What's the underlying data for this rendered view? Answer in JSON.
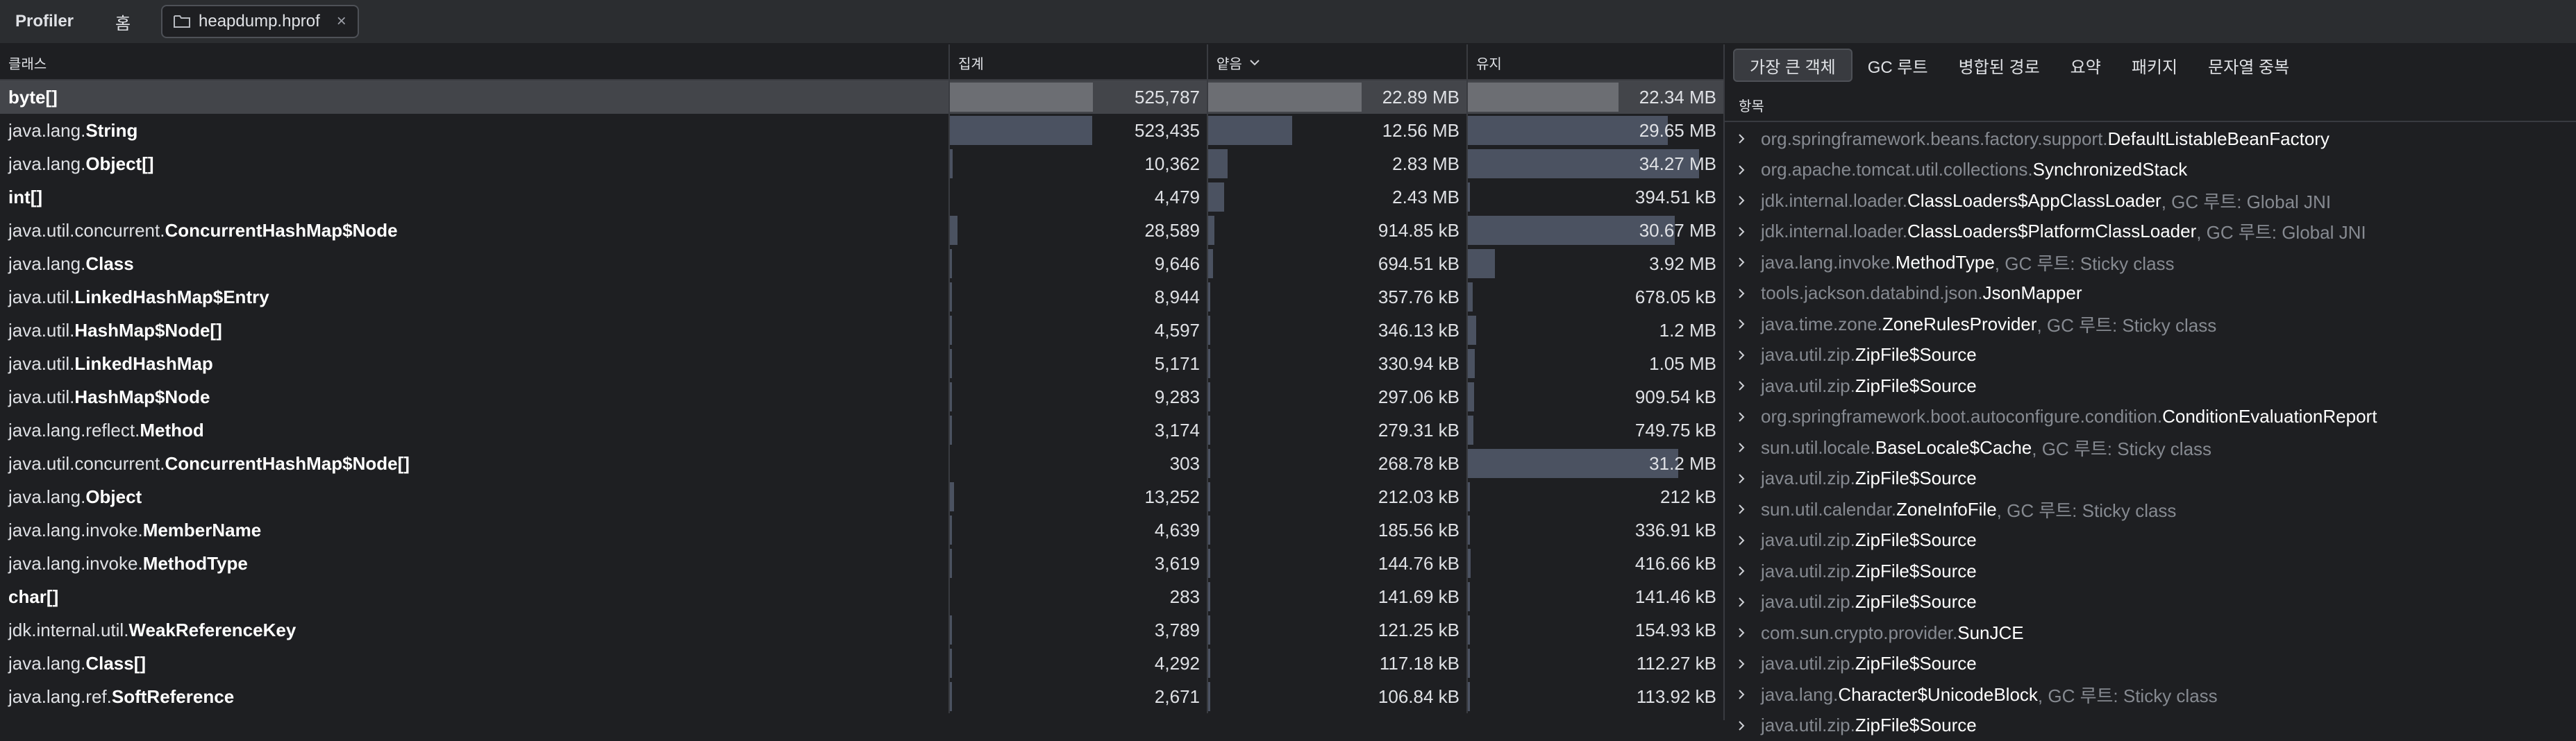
{
  "app": {
    "title": "Profiler",
    "home_tab": "홈",
    "file_tab": "heapdump.hprof",
    "close_glyph": "×"
  },
  "table": {
    "columns": {
      "class": "클래스",
      "count": "집계",
      "shallow": "얕음",
      "retained": "유지"
    },
    "rows": [
      {
        "pkg": "",
        "name": "byte[]",
        "count": "525,787",
        "shallow": "22.89 MB",
        "retained": "22.34 MB",
        "selected": true,
        "count_frac": 0.186,
        "shallow_frac": 0.198,
        "retained_frac": 0.197
      },
      {
        "pkg": "java.lang.",
        "name": "String",
        "count": "523,435",
        "shallow": "12.56 MB",
        "retained": "29.65 MB",
        "count_frac": 0.185,
        "shallow_frac": 0.109,
        "retained_frac": 0.261
      },
      {
        "pkg": "java.lang.",
        "name": "Object[]",
        "count": "10,362",
        "shallow": "2.83 MB",
        "retained": "34.27 MB",
        "count_frac": 0.004,
        "shallow_frac": 0.025,
        "retained_frac": 0.302
      },
      {
        "pkg": "",
        "name": "int[]",
        "count": "4,479",
        "shallow": "2.43 MB",
        "retained": "394.51 kB",
        "count_frac": 0.0,
        "shallow_frac": 0.021,
        "retained_frac": 0.003
      },
      {
        "pkg": "java.util.concurrent.",
        "name": "ConcurrentHashMap$Node",
        "count": "28,589",
        "shallow": "914.85 kB",
        "retained": "30.67 MB",
        "count_frac": 0.01,
        "shallow_frac": 0.008,
        "retained_frac": 0.27
      },
      {
        "pkg": "java.lang.",
        "name": "Class",
        "count": "9,646",
        "shallow": "694.51 kB",
        "retained": "3.92 MB",
        "count_frac": 0.003,
        "shallow_frac": 0.006,
        "retained_frac": 0.035
      },
      {
        "pkg": "java.util.",
        "name": "LinkedHashMap$Entry",
        "count": "8,944",
        "shallow": "357.76 kB",
        "retained": "678.05 kB",
        "count_frac": 0.003,
        "shallow_frac": 0.003,
        "retained_frac": 0.006
      },
      {
        "pkg": "java.util.",
        "name": "HashMap$Node[]",
        "count": "4,597",
        "shallow": "346.13 kB",
        "retained": "1.2 MB",
        "count_frac": 0.002,
        "shallow_frac": 0.003,
        "retained_frac": 0.011
      },
      {
        "pkg": "java.util.",
        "name": "LinkedHashMap",
        "count": "5,171",
        "shallow": "330.94 kB",
        "retained": "1.05 MB",
        "count_frac": 0.002,
        "shallow_frac": 0.003,
        "retained_frac": 0.009
      },
      {
        "pkg": "java.util.",
        "name": "HashMap$Node",
        "count": "9,283",
        "shallow": "297.06 kB",
        "retained": "909.54 kB",
        "count_frac": 0.003,
        "shallow_frac": 0.003,
        "retained_frac": 0.008
      },
      {
        "pkg": "java.lang.reflect.",
        "name": "Method",
        "count": "3,174",
        "shallow": "279.31 kB",
        "retained": "749.75 kB",
        "count_frac": 0.001,
        "shallow_frac": 0.002,
        "retained_frac": 0.007
      },
      {
        "pkg": "java.util.concurrent.",
        "name": "ConcurrentHashMap$Node[]",
        "count": "303",
        "shallow": "268.78 kB",
        "retained": "31.2 MB",
        "count_frac": 0.0,
        "shallow_frac": 0.002,
        "retained_frac": 0.275
      },
      {
        "pkg": "java.lang.",
        "name": "Object",
        "count": "13,252",
        "shallow": "212.03 kB",
        "retained": "212 kB",
        "count_frac": 0.005,
        "shallow_frac": 0.002,
        "retained_frac": 0.002
      },
      {
        "pkg": "java.lang.invoke.",
        "name": "MemberName",
        "count": "4,639",
        "shallow": "185.56 kB",
        "retained": "336.91 kB",
        "count_frac": 0.002,
        "shallow_frac": 0.002,
        "retained_frac": 0.003
      },
      {
        "pkg": "java.lang.invoke.",
        "name": "MethodType",
        "count": "3,619",
        "shallow": "144.76 kB",
        "retained": "416.66 kB",
        "count_frac": 0.001,
        "shallow_frac": 0.001,
        "retained_frac": 0.004
      },
      {
        "pkg": "",
        "name": "char[]",
        "count": "283",
        "shallow": "141.69 kB",
        "retained": "141.46 kB",
        "count_frac": 0.0,
        "shallow_frac": 0.001,
        "retained_frac": 0.001
      },
      {
        "pkg": "jdk.internal.util.",
        "name": "WeakReferenceKey",
        "count": "3,789",
        "shallow": "121.25 kB",
        "retained": "154.93 kB",
        "count_frac": 0.001,
        "shallow_frac": 0.001,
        "retained_frac": 0.001
      },
      {
        "pkg": "java.lang.",
        "name": "Class[]",
        "count": "4,292",
        "shallow": "117.18 kB",
        "retained": "112.27 kB",
        "count_frac": 0.002,
        "shallow_frac": 0.001,
        "retained_frac": 0.001
      },
      {
        "pkg": "java.lang.ref.",
        "name": "SoftReference",
        "count": "2,671",
        "shallow": "106.84 kB",
        "retained": "113.92 kB",
        "count_frac": 0.001,
        "shallow_frac": 0.001,
        "retained_frac": 0.001
      }
    ]
  },
  "right_panel": {
    "tabs": [
      {
        "label": "가장 큰 객체",
        "active": true
      },
      {
        "label": "GC 루트"
      },
      {
        "label": "병합된 경로"
      },
      {
        "label": "요약"
      },
      {
        "label": "패키지"
      },
      {
        "label": "문자열 중복"
      }
    ],
    "subheader": "항목",
    "items": [
      {
        "pkg": "org.springframework.beans.factory.support.",
        "name": "DefaultListableBeanFactory",
        "gc": ""
      },
      {
        "pkg": "org.apache.tomcat.util.collections.",
        "name": "SynchronizedStack",
        "gc": ""
      },
      {
        "pkg": "jdk.internal.loader.",
        "name": "ClassLoaders$AppClassLoader",
        "gc": ", GC 루트: Global JNI"
      },
      {
        "pkg": "jdk.internal.loader.",
        "name": "ClassLoaders$PlatformClassLoader",
        "gc": ", GC 루트: Global JNI"
      },
      {
        "pkg": "java.lang.invoke.",
        "name": "MethodType",
        "gc": ", GC 루트: Sticky class"
      },
      {
        "pkg": "tools.jackson.databind.json.",
        "name": "JsonMapper",
        "gc": ""
      },
      {
        "pkg": "java.time.zone.",
        "name": "ZoneRulesProvider",
        "gc": ", GC 루트: Sticky class"
      },
      {
        "pkg": "java.util.zip.",
        "name": "ZipFile$Source",
        "gc": ""
      },
      {
        "pkg": "java.util.zip.",
        "name": "ZipFile$Source",
        "gc": ""
      },
      {
        "pkg": "org.springframework.boot.autoconfigure.condition.",
        "name": "ConditionEvaluationReport",
        "gc": ""
      },
      {
        "pkg": "sun.util.locale.",
        "name": "BaseLocale$Cache",
        "gc": ", GC 루트: Sticky class"
      },
      {
        "pkg": "java.util.zip.",
        "name": "ZipFile$Source",
        "gc": ""
      },
      {
        "pkg": "sun.util.calendar.",
        "name": "ZoneInfoFile",
        "gc": ", GC 루트: Sticky class"
      },
      {
        "pkg": "java.util.zip.",
        "name": "ZipFile$Source",
        "gc": ""
      },
      {
        "pkg": "java.util.zip.",
        "name": "ZipFile$Source",
        "gc": ""
      },
      {
        "pkg": "java.util.zip.",
        "name": "ZipFile$Source",
        "gc": ""
      },
      {
        "pkg": "com.sun.crypto.provider.",
        "name": "SunJCE",
        "gc": ""
      },
      {
        "pkg": "java.util.zip.",
        "name": "ZipFile$Source",
        "gc": ""
      },
      {
        "pkg": "java.lang.",
        "name": "Character$UnicodeBlock",
        "gc": ", GC 루트: Sticky class"
      },
      {
        "pkg": "java.util.zip.",
        "name": "ZipFile$Source",
        "gc": ""
      }
    ]
  },
  "icons": {
    "folder": "folder-icon",
    "close": "close-icon",
    "sort": "chevron-down-icon",
    "expand": "chevron-right-icon"
  },
  "colors": {
    "bar": "#4b5261",
    "bar_selected": "#6c6e73",
    "background": "#1e1f22",
    "panel": "#2b2d30"
  }
}
